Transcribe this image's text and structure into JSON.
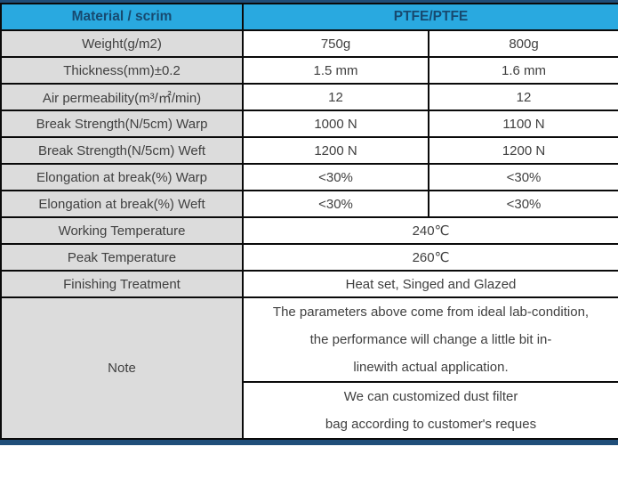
{
  "table": {
    "header": {
      "material_label": "Material / scrim",
      "material_value": "PTFE/PTFE"
    },
    "rows": [
      {
        "label": "Weight(g/m2)",
        "v1": "750g",
        "v2": "800g"
      },
      {
        "label": "Thickness(mm)±0.2",
        "v1": "1.5 mm",
        "v2": "1.6 mm"
      },
      {
        "label": "Air permeability(m³/㎡/min)",
        "v1": "12",
        "v2": "12"
      },
      {
        "label": "Break Strength(N/5cm) Warp",
        "v1": "1000 N",
        "v2": "1100 N"
      },
      {
        "label": "Break Strength(N/5cm) Weft",
        "v1": "1200 N",
        "v2": "1200 N"
      },
      {
        "label": "Elongation at break(%) Warp",
        "v1": "<30%",
        "v2": "<30%"
      },
      {
        "label": "Elongation at break(%) Weft",
        "v1": "<30%",
        "v2": "<30%"
      }
    ],
    "span_rows": [
      {
        "label": "Working Temperature",
        "value": "240℃"
      },
      {
        "label": "Peak Temperature",
        "value": "260℃"
      },
      {
        "label": "Finishing Treatment",
        "value": "Heat set, Singed and Glazed"
      }
    ],
    "note": {
      "label": "Note",
      "block1": [
        "The parameters above come from ideal lab-condition,",
        "the performance will change a little bit in-",
        "linewith actual application."
      ],
      "block2": [
        "We can customized dust filter",
        "bag according to customer's reques"
      ]
    }
  },
  "colors": {
    "header_bg": "#29A9E0",
    "header_text": "#174A70",
    "label_bg": "#DCDCDC",
    "accent_navy": "#1F4E79",
    "border": "#0a0a0a",
    "body_text": "#404040"
  }
}
